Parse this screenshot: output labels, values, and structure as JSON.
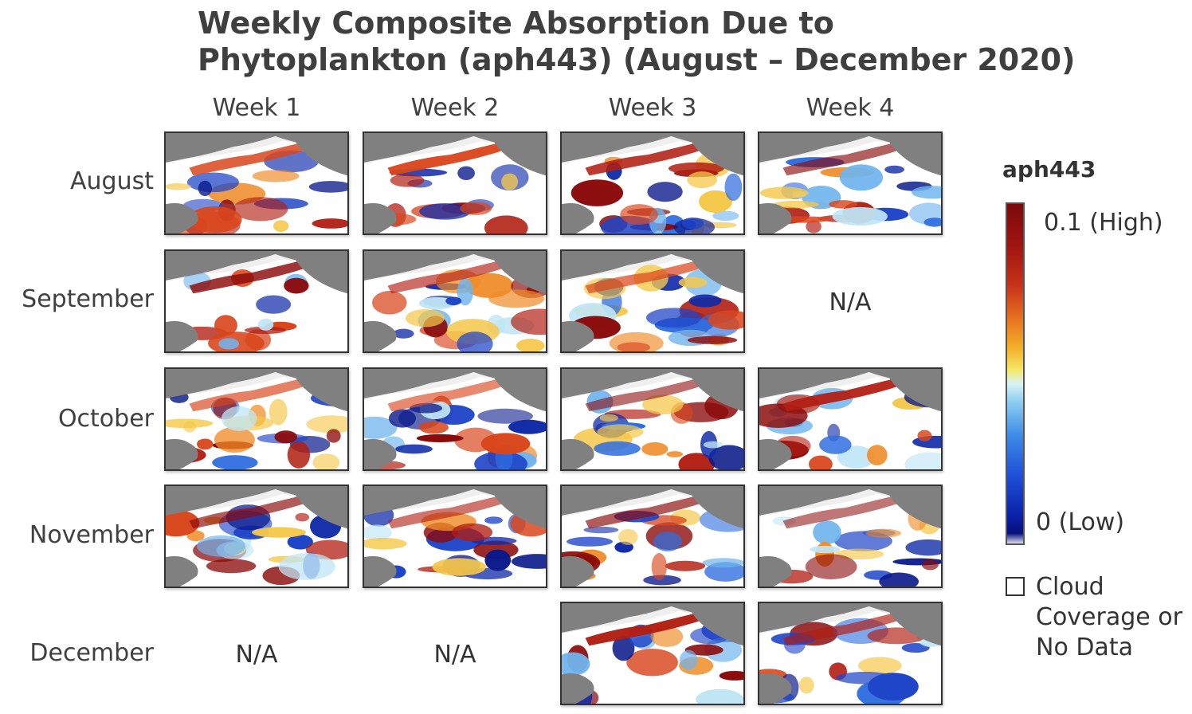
{
  "title": "Weekly Composite Absorption Due to Phytoplankton (aph443) (August – December 2020)",
  "weeks": [
    "Week 1",
    "Week 2",
    "Week 3",
    "Week 4"
  ],
  "months": [
    "August",
    "September",
    "October",
    "November",
    "December"
  ],
  "na_label": "N/A",
  "colorbar": {
    "title": "aph443",
    "high_label": "0.1 (High)",
    "low_label": "0 (Low)",
    "min": 0,
    "max": 0.1
  },
  "legend": {
    "cloud_label": "Cloud Coverage or No Data"
  },
  "colors": {
    "land": "#808080",
    "no_data": "#efefef",
    "cloud": "#ffffff",
    "high": "#8b0a0a",
    "low": "#0a1a9a"
  },
  "grid": [
    [
      "map",
      "map",
      "map",
      "map"
    ],
    [
      "map",
      "map",
      "map",
      "na"
    ],
    [
      "map",
      "map",
      "map",
      "map"
    ],
    [
      "map",
      "map",
      "map",
      "map"
    ],
    [
      "na",
      "na",
      "map",
      "map"
    ]
  ]
}
